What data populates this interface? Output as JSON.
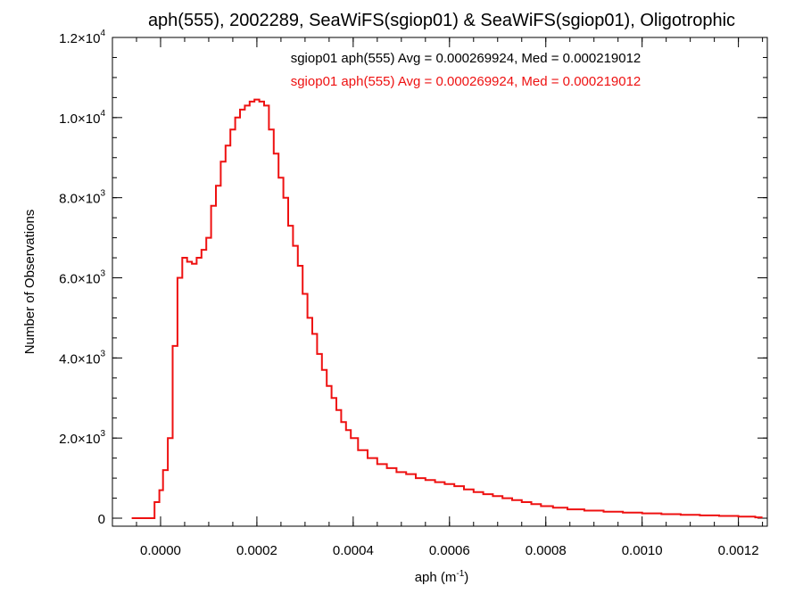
{
  "chart_data": {
    "type": "line",
    "title": "aph(555), 2002289, SeaWiFS(sgiop01) & SeaWiFS(sgiop01), Oligotrophic",
    "annotations": [
      {
        "text": "sgiop01 aph(555) Avg = 0.000269924, Med = 0.000219012",
        "color": "#000000"
      },
      {
        "text": "sgiop01 aph(555) Avg = 0.000269924, Med = 0.000219012",
        "color": "#ee1111"
      }
    ],
    "xlabel": "aph (m",
    "xlabel_sup": "-1",
    "xlabel_end": ")",
    "ylabel": "Number of Observations",
    "xlim": [
      -0.0001,
      0.00126
    ],
    "ylim": [
      -200,
      12000
    ],
    "xticks": [
      {
        "value": 0.0,
        "label": "0.0000"
      },
      {
        "value": 0.0002,
        "label": "0.0002"
      },
      {
        "value": 0.0004,
        "label": "0.0004"
      },
      {
        "value": 0.0006,
        "label": "0.0006"
      },
      {
        "value": 0.0008,
        "label": "0.0008"
      },
      {
        "value": 0.001,
        "label": "0.0010"
      },
      {
        "value": 0.0012,
        "label": "0.0012"
      }
    ],
    "yticks": [
      {
        "value": 0,
        "mant": "0",
        "exp": ""
      },
      {
        "value": 2000,
        "mant": "2.0×10",
        "exp": "3"
      },
      {
        "value": 4000,
        "mant": "4.0×10",
        "exp": "3"
      },
      {
        "value": 6000,
        "mant": "6.0×10",
        "exp": "3"
      },
      {
        "value": 8000,
        "mant": "8.0×10",
        "exp": "3"
      },
      {
        "value": 10000,
        "mant": "1.0×10",
        "exp": "4"
      },
      {
        "value": 12000,
        "mant": "1.2×10",
        "exp": "4"
      }
    ],
    "x_minor_step": 5e-05,
    "y_minor_step": 500,
    "step": true,
    "series": [
      {
        "color": "#ee1111",
        "points": [
          [
            -6e-05,
            0
          ],
          [
            -4e-05,
            0
          ],
          [
            -2e-05,
            0
          ],
          [
            -5e-06,
            400
          ],
          [
            0.0,
            700
          ],
          [
            1e-05,
            1200
          ],
          [
            2e-05,
            2000
          ],
          [
            3e-05,
            4300
          ],
          [
            4e-05,
            6000
          ],
          [
            5e-05,
            6500
          ],
          [
            6e-05,
            6400
          ],
          [
            7e-05,
            6350
          ],
          [
            8e-05,
            6500
          ],
          [
            9e-05,
            6700
          ],
          [
            0.0001,
            7000
          ],
          [
            0.00011,
            7800
          ],
          [
            0.00012,
            8300
          ],
          [
            0.00013,
            8900
          ],
          [
            0.00014,
            9300
          ],
          [
            0.00015,
            9700
          ],
          [
            0.00016,
            10000
          ],
          [
            0.00017,
            10200
          ],
          [
            0.00018,
            10300
          ],
          [
            0.00019,
            10400
          ],
          [
            0.0002,
            10450
          ],
          [
            0.00021,
            10400
          ],
          [
            0.00022,
            10300
          ],
          [
            0.00023,
            9700
          ],
          [
            0.00024,
            9100
          ],
          [
            0.00025,
            8500
          ],
          [
            0.00026,
            8000
          ],
          [
            0.00027,
            7300
          ],
          [
            0.00028,
            6800
          ],
          [
            0.00029,
            6300
          ],
          [
            0.0003,
            5600
          ],
          [
            0.00031,
            5000
          ],
          [
            0.00032,
            4600
          ],
          [
            0.00033,
            4100
          ],
          [
            0.00034,
            3700
          ],
          [
            0.00035,
            3300
          ],
          [
            0.00036,
            3000
          ],
          [
            0.00037,
            2700
          ],
          [
            0.00038,
            2400
          ],
          [
            0.00039,
            2200
          ],
          [
            0.0004,
            2000
          ],
          [
            0.00042,
            1700
          ],
          [
            0.00044,
            1500
          ],
          [
            0.00046,
            1350
          ],
          [
            0.00048,
            1250
          ],
          [
            0.0005,
            1150
          ],
          [
            0.00052,
            1100
          ],
          [
            0.00054,
            1000
          ],
          [
            0.00056,
            950
          ],
          [
            0.00058,
            900
          ],
          [
            0.0006,
            850
          ],
          [
            0.00062,
            800
          ],
          [
            0.00064,
            720
          ],
          [
            0.00066,
            650
          ],
          [
            0.00068,
            600
          ],
          [
            0.0007,
            550
          ],
          [
            0.00072,
            500
          ],
          [
            0.00074,
            450
          ],
          [
            0.00076,
            400
          ],
          [
            0.00078,
            350
          ],
          [
            0.0008,
            300
          ],
          [
            0.00083,
            260
          ],
          [
            0.00086,
            220
          ],
          [
            0.0009,
            190
          ],
          [
            0.00094,
            160
          ],
          [
            0.00098,
            140
          ],
          [
            0.00102,
            120
          ],
          [
            0.00106,
            100
          ],
          [
            0.0011,
            85
          ],
          [
            0.00114,
            70
          ],
          [
            0.00118,
            55
          ],
          [
            0.00122,
            40
          ],
          [
            0.00125,
            20
          ]
        ]
      }
    ]
  }
}
